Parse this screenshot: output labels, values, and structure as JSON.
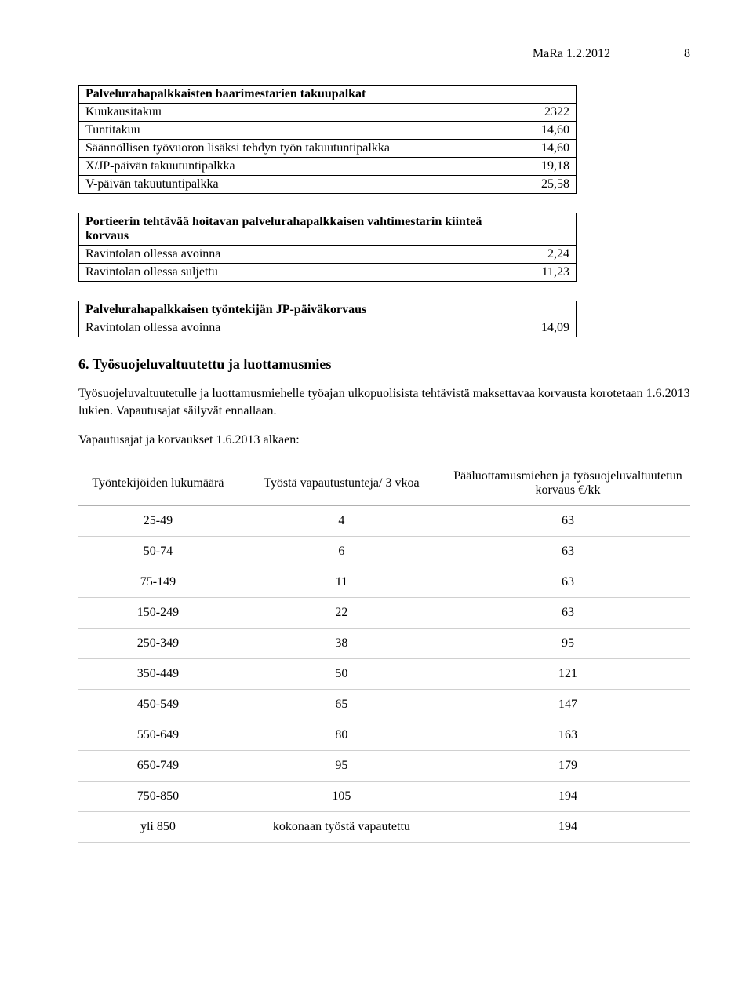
{
  "header": {
    "date": "MaRa 1.2.2012",
    "page": "8"
  },
  "table1": {
    "title": "Palvelurahapalkkaisten baarimestarien takuupalkat",
    "rows": [
      {
        "label": "Kuukausitakuu",
        "value": "2322"
      },
      {
        "label": "Tuntitakuu",
        "value": "14,60"
      },
      {
        "label": "Säännöllisen työvuoron lisäksi tehdyn työn takuutuntipalkka",
        "value": "14,60"
      },
      {
        "label": "X/JP-päivän takuutuntipalkka",
        "value": "19,18"
      },
      {
        "label": "V-päivän takuutuntipalkka",
        "value": "25,58"
      }
    ]
  },
  "table2": {
    "title": "Portieerin tehtävää hoitavan palvelurahapalkkaisen vahtimestarin kiinteä korvaus",
    "rows": [
      {
        "label": "Ravintolan ollessa avoinna",
        "value": "2,24"
      },
      {
        "label": "Ravintolan ollessa suljettu",
        "value": "11,23"
      }
    ]
  },
  "table3": {
    "title": "Palvelurahapalkkaisen työntekijän JP-päiväkorvaus",
    "rows": [
      {
        "label": "Ravintolan ollessa avoinna",
        "value": "14,09"
      }
    ]
  },
  "section6": {
    "heading": "6. Työsuojeluvaltuutettu ja luottamusmies",
    "para1": "Työsuojeluvaltuutetulle ja luottamusmiehelle työajan ulkopuolisista tehtävistä maksettavaa korvausta korotetaan 1.6.2013 lukien. Vapautusajat säilyvät ennallaan.",
    "para2": "Vapautusajat ja korvaukset 1.6.2013 alkaen:"
  },
  "compTable": {
    "headers": {
      "a": "Työntekijöiden lukumäärä",
      "b": "Työstä vapautustunteja/ 3 vkoa",
      "c": "Pääluottamusmiehen ja työsuojeluvaltuutetun korvaus €/kk"
    },
    "rows": [
      {
        "a": "25-49",
        "b": "4",
        "c": "63"
      },
      {
        "a": "50-74",
        "b": "6",
        "c": "63"
      },
      {
        "a": "75-149",
        "b": "11",
        "c": "63"
      },
      {
        "a": "150-249",
        "b": "22",
        "c": "63"
      },
      {
        "a": "250-349",
        "b": "38",
        "c": "95"
      },
      {
        "a": "350-449",
        "b": "50",
        "c": "121"
      },
      {
        "a": "450-549",
        "b": "65",
        "c": "147"
      },
      {
        "a": "550-649",
        "b": "80",
        "c": "163"
      },
      {
        "a": "650-749",
        "b": "95",
        "c": "179"
      },
      {
        "a": "750-850",
        "b": "105",
        "c": "194"
      },
      {
        "a": "yli 850",
        "b": "kokonaan työstä vapautettu",
        "c": "194"
      }
    ]
  }
}
